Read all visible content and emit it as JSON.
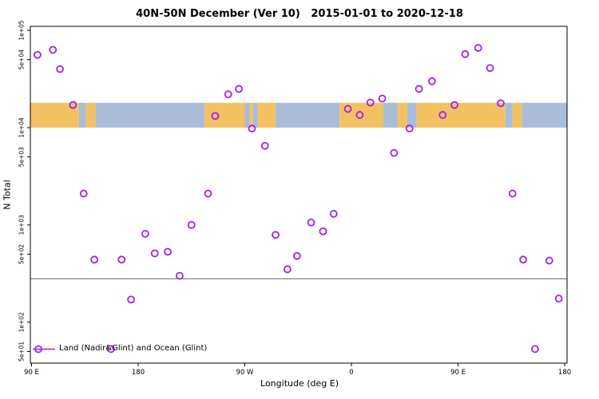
{
  "chart_data": {
    "type": "scatter",
    "title": "40N-50N December (Ver 10)   2015-01-01 to 2020-12-18",
    "xlabel": "Longitude (deg E)",
    "ylabel": "N Total",
    "x_axis": {
      "range": [
        89,
        542
      ],
      "ticks": [
        {
          "value": 90,
          "label": "90 E"
        },
        {
          "value": 180,
          "label": "180"
        },
        {
          "value": 270,
          "label": "90 W"
        },
        {
          "value": 360,
          "label": "0"
        },
        {
          "value": 450,
          "label": "90 E"
        },
        {
          "value": 540,
          "label": "180"
        }
      ]
    },
    "y_axis": {
      "scale": "log",
      "range": [
        38,
        110000
      ],
      "ticks": [
        {
          "value": 100000,
          "label": "1e+05"
        },
        {
          "value": 50000,
          "label": "5e+04"
        },
        {
          "value": 10000,
          "label": "1e+04"
        },
        {
          "value": 5000,
          "label": "5e+03"
        },
        {
          "value": 1000,
          "label": "1e+03"
        },
        {
          "value": 500,
          "label": "5e+02"
        },
        {
          "value": 100,
          "label": "1e+02"
        },
        {
          "value": 50,
          "label": "5e+01"
        }
      ]
    },
    "map_band": {
      "value_from": 10000,
      "value_to": 18000,
      "land_color": "#f3c162",
      "ocean_color": "#a9bdd9",
      "segments": [
        {
          "from": 89,
          "to": 130,
          "type": "land"
        },
        {
          "from": 130,
          "to": 136,
          "type": "ocean"
        },
        {
          "from": 136,
          "to": 144,
          "type": "land"
        },
        {
          "from": 144,
          "to": 236,
          "type": "ocean"
        },
        {
          "from": 236,
          "to": 270,
          "type": "land"
        },
        {
          "from": 270,
          "to": 274,
          "type": "ocean"
        },
        {
          "from": 274,
          "to": 277,
          "type": "land"
        },
        {
          "from": 277,
          "to": 281,
          "type": "ocean"
        },
        {
          "from": 281,
          "to": 296,
          "type": "land"
        },
        {
          "from": 296,
          "to": 350,
          "type": "ocean"
        },
        {
          "from": 350,
          "to": 387,
          "type": "land"
        },
        {
          "from": 387,
          "to": 399,
          "type": "ocean"
        },
        {
          "from": 399,
          "to": 407,
          "type": "land"
        },
        {
          "from": 407,
          "to": 415,
          "type": "ocean"
        },
        {
          "from": 415,
          "to": 490,
          "type": "land"
        },
        {
          "from": 490,
          "to": 496,
          "type": "ocean"
        },
        {
          "from": 496,
          "to": 504,
          "type": "land"
        },
        {
          "from": 504,
          "to": 542,
          "type": "ocean"
        }
      ]
    },
    "reference_line_value": 280,
    "series": [
      {
        "name": "Land (Nadir&Glint) and Ocean (Glint)",
        "marker": "open-circle",
        "color": "#a020f0",
        "points": [
          [
            95,
            56000
          ],
          [
            108,
            63000
          ],
          [
            114,
            40000
          ],
          [
            125,
            17100
          ],
          [
            134,
            2100
          ],
          [
            143,
            440
          ],
          [
            157,
            53
          ],
          [
            166,
            440
          ],
          [
            174,
            171
          ],
          [
            186,
            810
          ],
          [
            194,
            510
          ],
          [
            205,
            530
          ],
          [
            215,
            300
          ],
          [
            225,
            1000
          ],
          [
            239,
            2100
          ],
          [
            245,
            13200
          ],
          [
            256,
            22000
          ],
          [
            265,
            25000
          ],
          [
            276,
            9800
          ],
          [
            287,
            6500
          ],
          [
            296,
            790
          ],
          [
            306,
            350
          ],
          [
            314,
            480
          ],
          [
            326,
            1060
          ],
          [
            336,
            860
          ],
          [
            345,
            1300
          ],
          [
            357,
            15600
          ],
          [
            367,
            13500
          ],
          [
            376,
            18100
          ],
          [
            386,
            19900
          ],
          [
            396,
            5500
          ],
          [
            409,
            9800
          ],
          [
            417,
            25000
          ],
          [
            428,
            30000
          ],
          [
            437,
            13500
          ],
          [
            447,
            17100
          ],
          [
            456,
            57000
          ],
          [
            467,
            66000
          ],
          [
            477,
            41000
          ],
          [
            486,
            17800
          ],
          [
            496,
            2100
          ],
          [
            505,
            440
          ],
          [
            515,
            53
          ],
          [
            527,
            430
          ],
          [
            535,
            175
          ]
        ]
      }
    ],
    "legend": {
      "position": "bottom-left",
      "label": "Land (Nadir&Glint) and Ocean (Glint)"
    }
  }
}
